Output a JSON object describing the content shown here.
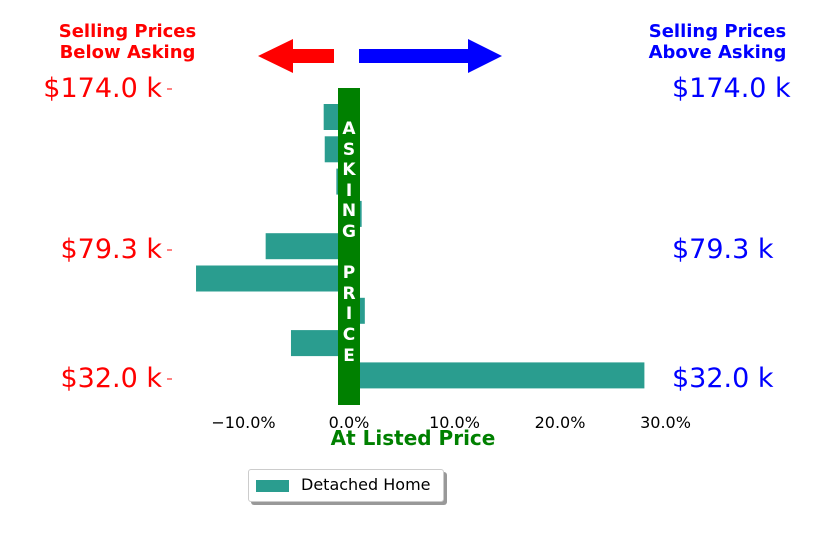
{
  "headers": {
    "left": "Selling Prices Below Asking",
    "right": "Selling Prices Above Asking"
  },
  "colors": {
    "below": "#ff0000",
    "above": "#0000ff",
    "bar": "#2a9d8f",
    "asking_bar": "#008000"
  },
  "chart_data": {
    "type": "bar",
    "orientation": "horizontal",
    "xlabel": "At Listed Price",
    "x_tick_labels": [
      "−10.0%",
      "0.0%",
      "10.0%",
      "20.0%",
      "30.0%"
    ],
    "x_ticks": [
      -10,
      0,
      10,
      20,
      30
    ],
    "xlim": [
      -16,
      30
    ],
    "y_price_labels": [
      "$174.0 k",
      "$79.3 k",
      "$32.0 k"
    ],
    "center_label": "ASKING PRICE",
    "series": [
      {
        "name": "Detached Home",
        "values": [
          -2.4,
          -2.3,
          -1.2,
          1.2,
          -7.9,
          -14.5,
          1.5,
          -5.5,
          28.0
        ]
      }
    ],
    "legend": "bottom-center"
  }
}
